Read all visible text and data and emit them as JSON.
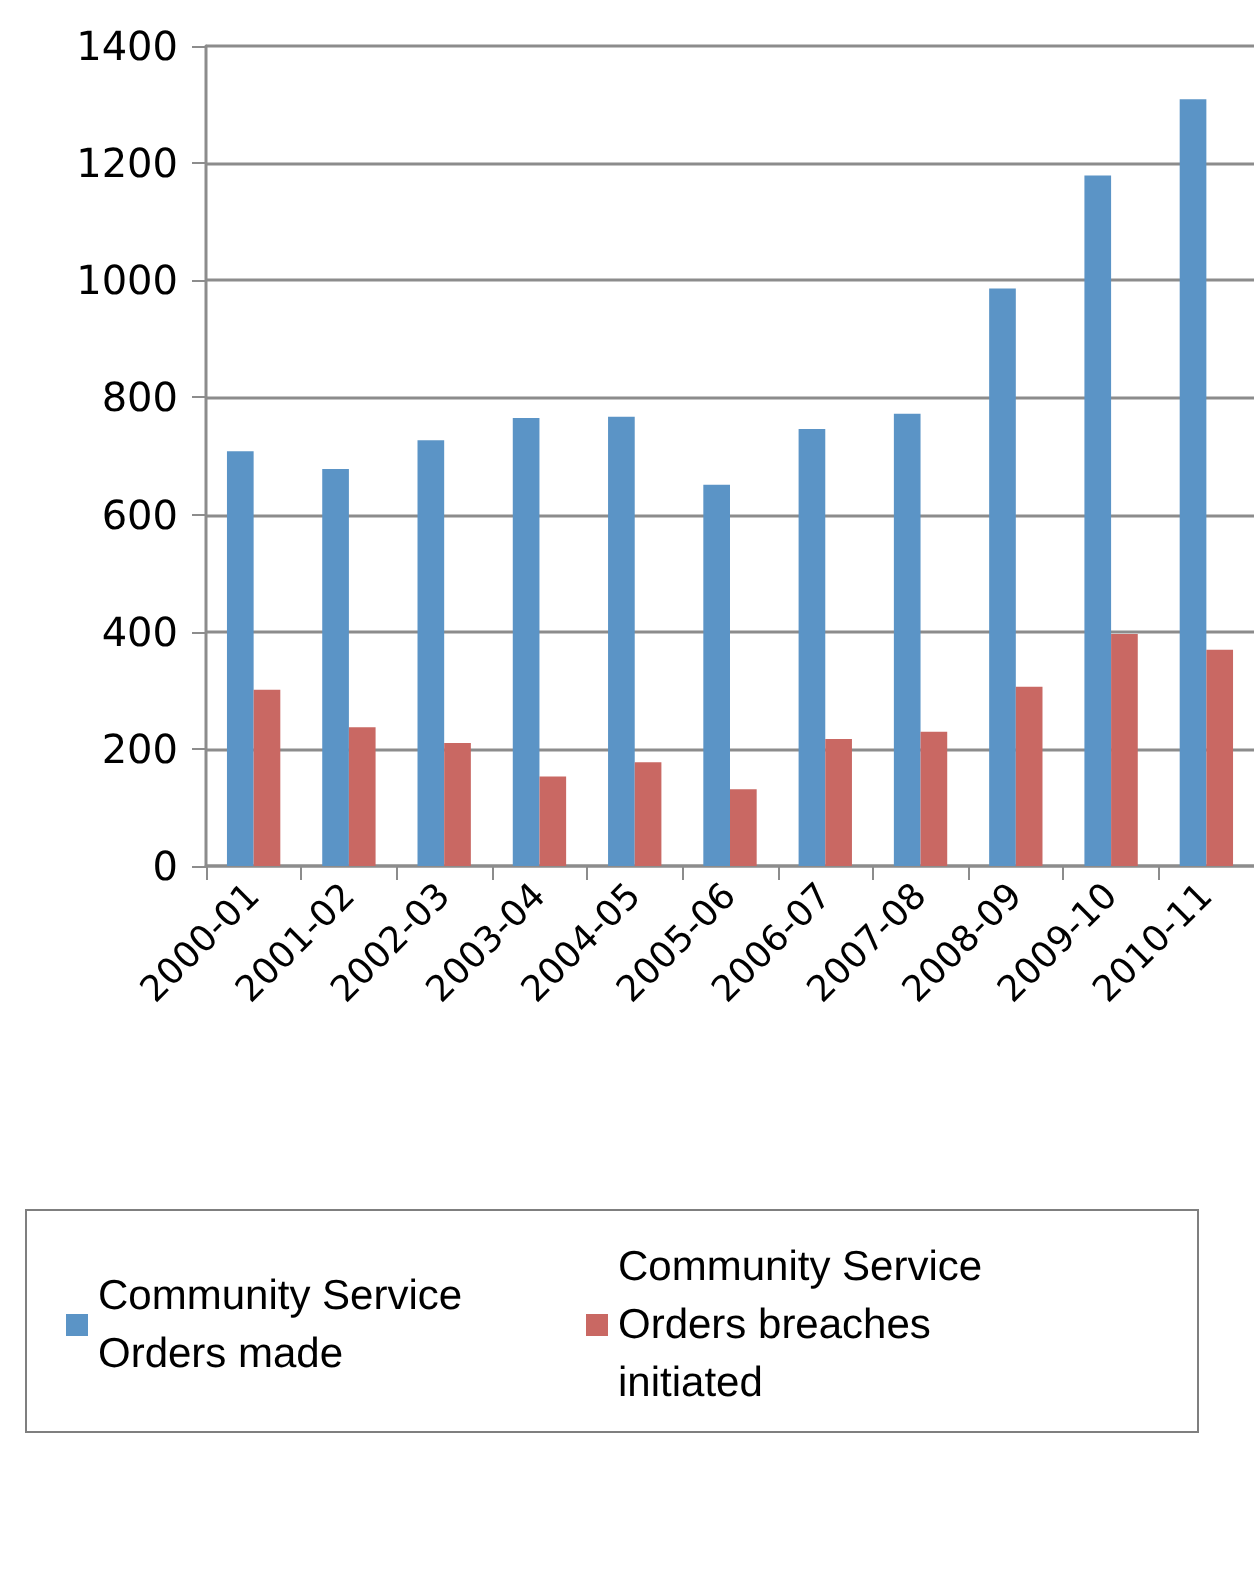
{
  "chart_data": {
    "type": "bar",
    "categories": [
      "2000-01",
      "2001-02",
      "2002-03",
      "2003-04",
      "2004-05",
      "2005-06",
      "2006-07",
      "2007-08",
      "2008-09",
      "2009-10",
      "2010-11"
    ],
    "series": [
      {
        "name": "Community Service Orders made",
        "color": "#5b94c6",
        "values": [
          708,
          678,
          727,
          765,
          767,
          651,
          746,
          772,
          986,
          1179,
          1309
        ]
      },
      {
        "name": "Community Service Orders breaches initiated",
        "color": "#c96863",
        "values": [
          301,
          237,
          210,
          153,
          177,
          131,
          217,
          229,
          306,
          396,
          369
        ]
      }
    ],
    "ylim": [
      0,
      1400
    ],
    "yticks": [
      0,
      200,
      400,
      600,
      800,
      1000,
      1200,
      1400
    ],
    "grid": "y",
    "legend": "bottom left"
  }
}
